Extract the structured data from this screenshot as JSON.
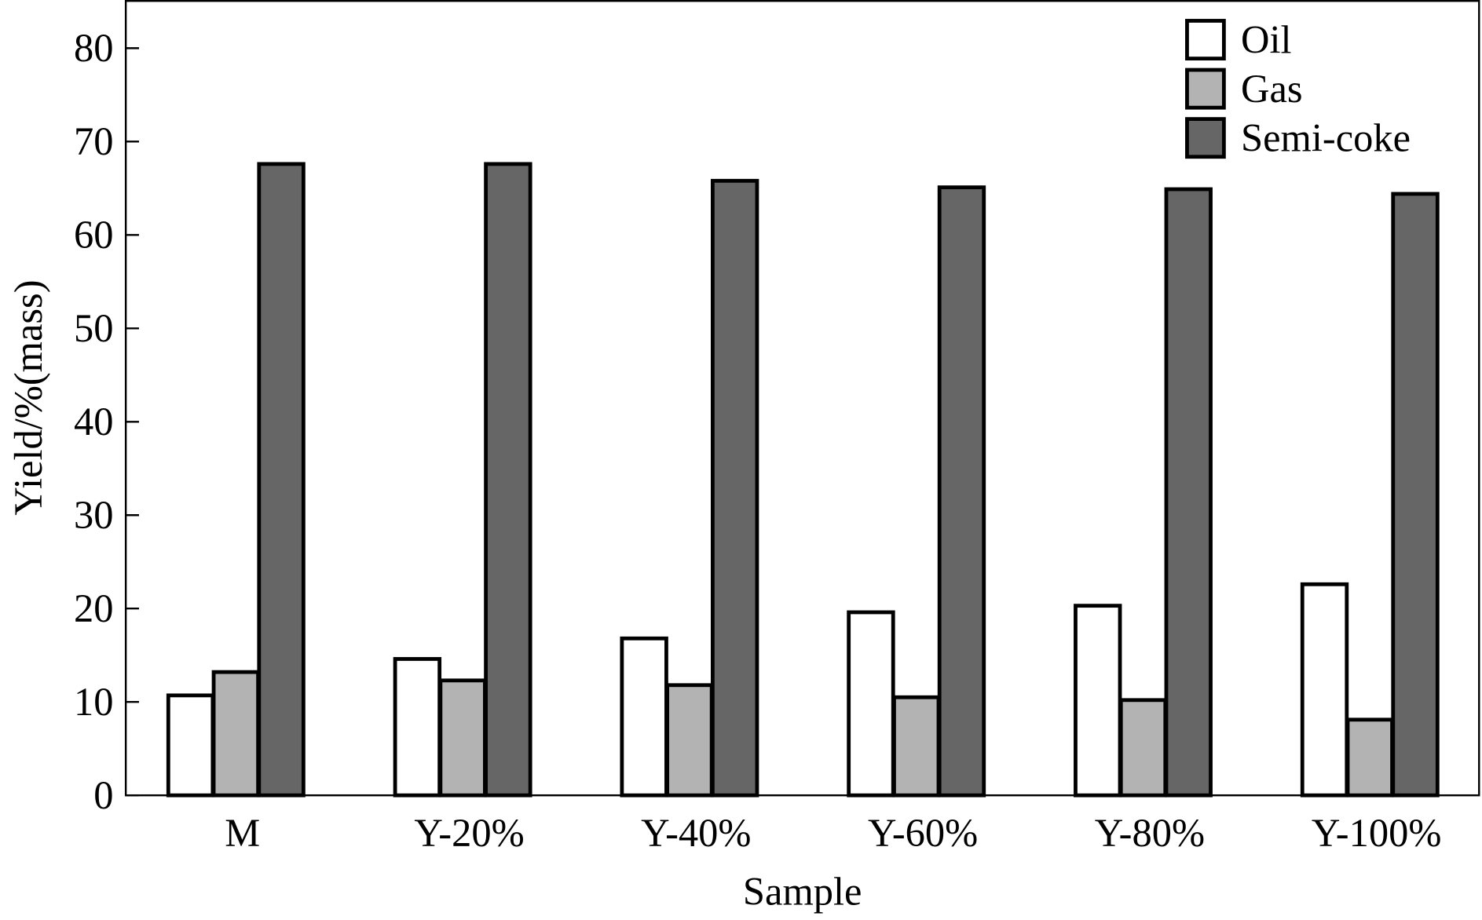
{
  "chart_data": {
    "type": "bar",
    "title": "",
    "xlabel": "Sample",
    "ylabel": "Yield/%(mass)",
    "ylim": [
      0,
      85
    ],
    "yticks": [
      0,
      10,
      20,
      30,
      40,
      50,
      60,
      70,
      80
    ],
    "grid": false,
    "legend_position": "top-right",
    "categories": [
      "M",
      "Y-20%",
      "Y-40%",
      "Y-60%",
      "Y-80%",
      "Y-100%"
    ],
    "series": [
      {
        "name": "Oil",
        "color": "#ffffff",
        "values": [
          10.7,
          14.6,
          16.8,
          19.6,
          20.3,
          22.6
        ]
      },
      {
        "name": "Gas",
        "color": "#b3b3b3",
        "values": [
          13.2,
          12.3,
          11.8,
          10.5,
          10.2,
          8.1
        ]
      },
      {
        "name": "Semi-coke",
        "color": "#666666",
        "values": [
          67.6,
          67.6,
          65.8,
          65.1,
          64.9,
          64.4
        ]
      }
    ]
  }
}
